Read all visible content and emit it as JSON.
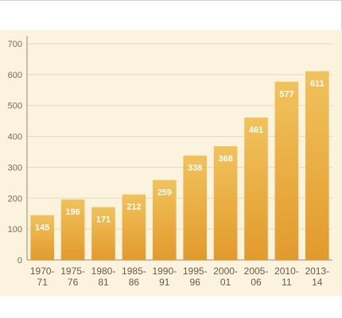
{
  "chart_data": {
    "type": "bar",
    "title": "",
    "xlabel": "",
    "ylabel": "",
    "ylim": [
      0,
      700
    ],
    "yticks": [
      0,
      100,
      200,
      300,
      400,
      500,
      600,
      700
    ],
    "categories": [
      [
        "1970-",
        "71"
      ],
      [
        "1975-",
        "76"
      ],
      [
        "1980-",
        "81"
      ],
      [
        "1985-",
        "86"
      ],
      [
        "1990-",
        "91"
      ],
      [
        "1995-",
        "96"
      ],
      [
        "2000-",
        "01"
      ],
      [
        "2005-",
        "06"
      ],
      [
        "2010-",
        "11"
      ],
      [
        "2013-",
        "14"
      ]
    ],
    "values": [
      145,
      196,
      171,
      212,
      259,
      338,
      368,
      461,
      577,
      611
    ],
    "bar_color": "#e8a93a",
    "bar_color_light": "#f1c25c",
    "grid": true,
    "grid_color": "#e6d9bb",
    "legend": "none"
  }
}
